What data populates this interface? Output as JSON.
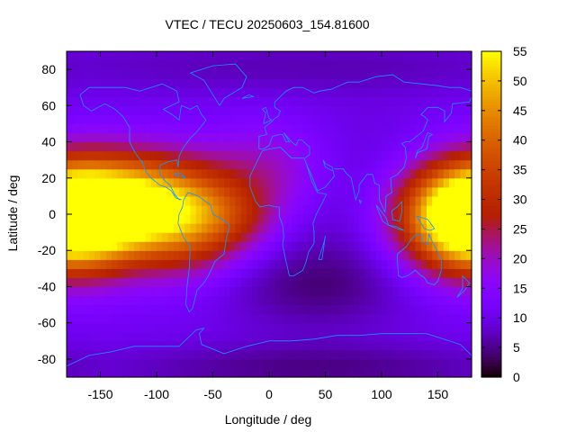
{
  "chart_data": {
    "type": "heatmap",
    "title": "VTEC / TECU 20250603_154.81600",
    "xlabel": "Longitude / deg",
    "ylabel": "Latitude / deg",
    "xlim": [
      -180,
      180
    ],
    "ylim": [
      -90,
      90
    ],
    "x_ticks": [
      -150,
      -100,
      -50,
      0,
      50,
      100,
      150
    ],
    "y_ticks": [
      -80,
      -60,
      -40,
      -20,
      0,
      20,
      40,
      60,
      80
    ],
    "colorbar": {
      "range": [
        0,
        55
      ],
      "ticks": [
        0,
        5,
        10,
        15,
        20,
        25,
        30,
        35,
        40,
        45,
        50,
        55
      ],
      "colormap": "black-purple-red-orange-yellow"
    },
    "background_level": 11,
    "features": [
      {
        "lon": -160,
        "lat": 0,
        "lon_width": 55,
        "lat_width": 20,
        "value": 44
      },
      {
        "lon": -110,
        "lat": 8,
        "lon_width": 45,
        "lat_width": 18,
        "value": 20
      },
      {
        "lon": -70,
        "lat": -5,
        "lon_width": 32,
        "lat_width": 20,
        "value": 15
      },
      {
        "lon": -30,
        "lat": -2,
        "lon_width": 30,
        "lat_width": 14,
        "value": 10
      },
      {
        "lon": 0,
        "lat": 25,
        "lon_width": 40,
        "lat_width": 18,
        "value": 9
      },
      {
        "lon": 175,
        "lat": -2,
        "lon_width": 35,
        "lat_width": 20,
        "value": 30
      },
      {
        "lon": 40,
        "lat": -40,
        "lon_width": 60,
        "lat_width": 18,
        "value": -6
      },
      {
        "lon": 80,
        "lat": 8,
        "lon_width": 50,
        "lat_width": 30,
        "value": -4
      },
      {
        "lon": 20,
        "lat": 82,
        "lon_width": 200,
        "lat_width": 12,
        "value": -4
      },
      {
        "lon": 40,
        "lat": -85,
        "lon_width": 140,
        "lat_width": 10,
        "value": -6
      }
    ],
    "coastline_color": "#1e90ff"
  }
}
